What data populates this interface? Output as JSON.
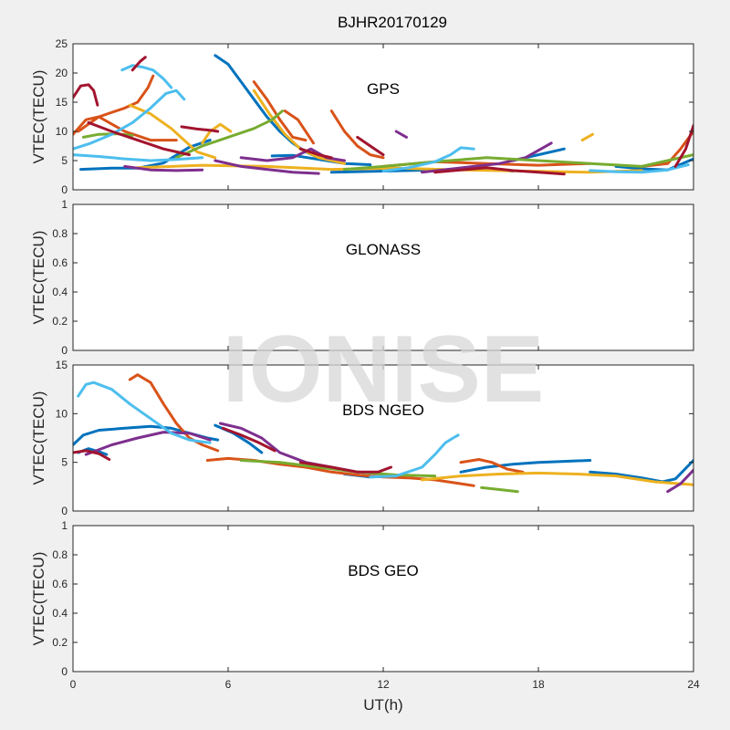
{
  "title": "BJHR20170129",
  "watermark": "IONISE",
  "xlabel": "UT(h)",
  "xlim": [
    0,
    24
  ],
  "xticks": [
    0,
    6,
    12,
    18,
    24
  ],
  "palette": [
    "#0072BD",
    "#D95319",
    "#EDB120",
    "#7E2F8E",
    "#77AC30",
    "#4DBEEE",
    "#A2142F"
  ],
  "chart_data": [
    {
      "type": "line",
      "panel": "GPS",
      "ylabel": "VTEC(TECU)",
      "ylim": [
        0,
        25
      ],
      "yticks": [
        0,
        5,
        10,
        15,
        20,
        25
      ],
      "series": [
        {
          "color": "#0072BD",
          "x": [
            0.3,
            1.5,
            2.5,
            3.5,
            4.5,
            5.3
          ],
          "y": [
            3.5,
            3.7,
            3.7,
            4.6,
            7.3,
            8.5
          ]
        },
        {
          "color": "#0072BD",
          "x": [
            5.5,
            6.0,
            6.5,
            7.0,
            7.5,
            8.0,
            8.5,
            9.0,
            9.5,
            10.0
          ],
          "y": [
            23.0,
            21.5,
            18.5,
            15.5,
            12.5,
            10.0,
            8.0,
            6.5,
            5.5,
            5.0
          ]
        },
        {
          "color": "#0072BD",
          "x": [
            7.7,
            8.5,
            9.5,
            10.5,
            11.5
          ],
          "y": [
            5.8,
            5.9,
            5.2,
            4.5,
            4.3
          ]
        },
        {
          "color": "#0072BD",
          "x": [
            10.0,
            12.0,
            14.0,
            16.0,
            17.0
          ],
          "y": [
            3.0,
            3.2,
            3.4,
            3.6,
            3.2
          ]
        },
        {
          "color": "#0072BD",
          "x": [
            17.0,
            18.0,
            19.0
          ],
          "y": [
            5.0,
            6.0,
            7.0
          ]
        },
        {
          "color": "#0072BD",
          "x": [
            21.0,
            22.0,
            23.0,
            24.0
          ],
          "y": [
            4.0,
            3.6,
            3.4,
            5.3
          ]
        },
        {
          "color": "#D95319",
          "x": [
            0.0,
            0.5,
            1.0,
            2.0,
            3.0,
            4.0
          ],
          "y": [
            9.5,
            12.0,
            12.5,
            10.0,
            8.5,
            8.5
          ]
        },
        {
          "color": "#D95319",
          "x": [
            0.2,
            1.0,
            2.0,
            2.5,
            2.9,
            3.1
          ],
          "y": [
            10.0,
            12.5,
            14.0,
            15.0,
            17.5,
            19.5
          ]
        },
        {
          "color": "#D95319",
          "x": [
            7.0,
            7.5,
            8.0,
            8.5,
            9.0
          ],
          "y": [
            18.5,
            15.5,
            12.0,
            9.0,
            8.5
          ]
        },
        {
          "color": "#D95319",
          "x": [
            8.2,
            8.7,
            9.3
          ],
          "y": [
            13.5,
            12.0,
            8.0
          ]
        },
        {
          "color": "#D95319",
          "x": [
            10.0,
            10.5,
            11.0,
            11.5,
            12.0
          ],
          "y": [
            13.5,
            10.0,
            7.5,
            6.0,
            5.5
          ]
        },
        {
          "color": "#D95319",
          "x": [
            12.0,
            14.0,
            16.0,
            18.0,
            20.0
          ],
          "y": [
            4.0,
            4.8,
            4.5,
            4.2,
            4.5
          ]
        },
        {
          "color": "#D95319",
          "x": [
            22.0,
            23.0,
            23.5,
            24.0
          ],
          "y": [
            4.0,
            4.5,
            7.0,
            10.0
          ]
        },
        {
          "color": "#EDB120",
          "x": [
            2.2,
            3.0,
            3.8,
            4.3,
            4.8,
            5.5
          ],
          "y": [
            14.5,
            13.0,
            10.5,
            8.5,
            6.5,
            5.5
          ]
        },
        {
          "color": "#EDB120",
          "x": [
            5.0,
            5.3,
            5.7,
            6.1
          ],
          "y": [
            8.0,
            10.0,
            11.2,
            10.0
          ]
        },
        {
          "color": "#EDB120",
          "x": [
            7.0,
            7.6,
            8.2,
            8.8,
            9.5,
            10.5
          ],
          "y": [
            17.0,
            13.0,
            9.5,
            7.0,
            5.5,
            4.5
          ]
        },
        {
          "color": "#EDB120",
          "x": [
            2.5,
            5.0,
            7.5,
            10.0,
            12.5,
            15.0,
            17.5,
            20.0,
            22.0
          ],
          "y": [
            3.8,
            4.2,
            4.0,
            3.5,
            3.7,
            3.4,
            3.2,
            3.0,
            3.3
          ]
        },
        {
          "color": "#EDB120",
          "x": [
            19.7,
            20.1
          ],
          "y": [
            8.5,
            9.5
          ]
        },
        {
          "color": "#7E2F8E",
          "x": [
            2.0,
            3.0,
            4.0,
            5.0
          ],
          "y": [
            4.0,
            3.4,
            3.3,
            3.4
          ]
        },
        {
          "color": "#7E2F8E",
          "x": [
            5.5,
            6.5,
            7.5,
            8.5,
            9.5
          ],
          "y": [
            5.0,
            4.0,
            3.5,
            3.0,
            2.8
          ]
        },
        {
          "color": "#7E2F8E",
          "x": [
            6.5,
            7.5,
            8.5,
            9.2,
            9.8,
            10.5
          ],
          "y": [
            5.5,
            5.0,
            5.5,
            7.0,
            5.5,
            5.0
          ]
        },
        {
          "color": "#7E2F8E",
          "x": [
            13.5,
            14.5,
            15.5,
            16.5,
            17.5,
            18.5
          ],
          "y": [
            3.0,
            3.5,
            4.0,
            4.5,
            5.5,
            8.0
          ]
        },
        {
          "color": "#7E2F8E",
          "x": [
            12.5,
            12.9
          ],
          "y": [
            10.0,
            9.0
          ]
        },
        {
          "color": "#77AC30",
          "x": [
            0.4,
            1.0,
            1.7,
            2.3
          ],
          "y": [
            9.0,
            9.5,
            9.6,
            9.3
          ]
        },
        {
          "color": "#77AC30",
          "x": [
            4.0,
            5.0,
            6.0,
            7.0,
            7.7,
            8.1
          ],
          "y": [
            5.5,
            7.5,
            9.0,
            10.5,
            12.0,
            13.5
          ]
        },
        {
          "color": "#77AC30",
          "x": [
            10.5,
            12.0,
            14.0,
            16.0,
            18.0,
            20.0,
            22.0,
            24.0
          ],
          "y": [
            3.5,
            4.0,
            4.8,
            5.5,
            5.0,
            4.5,
            4.0,
            6.0
          ]
        },
        {
          "color": "#4DBEEE",
          "x": [
            0.0,
            0.7,
            1.5,
            2.3,
            3.0,
            3.6,
            4.0,
            4.3
          ],
          "y": [
            7.0,
            8.0,
            9.5,
            11.5,
            14.0,
            16.5,
            17.0,
            15.5
          ]
        },
        {
          "color": "#4DBEEE",
          "x": [
            1.9,
            2.3,
            2.7,
            3.1,
            3.5,
            3.8
          ],
          "y": [
            20.5,
            21.3,
            21.0,
            20.5,
            19.0,
            17.5
          ]
        },
        {
          "color": "#4DBEEE",
          "x": [
            0.0,
            1.0,
            2.0,
            3.0,
            4.0,
            5.0
          ],
          "y": [
            6.0,
            5.7,
            5.3,
            5.0,
            5.2,
            5.5
          ]
        },
        {
          "color": "#4DBEEE",
          "x": [
            12.0,
            13.0,
            14.0,
            14.6,
            15.0,
            15.5
          ],
          "y": [
            3.2,
            3.8,
            4.8,
            6.0,
            7.2,
            7.0
          ]
        },
        {
          "color": "#4DBEEE",
          "x": [
            20.0,
            21.0,
            22.0,
            23.0,
            23.8
          ],
          "y": [
            3.3,
            3.1,
            3.0,
            3.4,
            4.3
          ]
        },
        {
          "color": "#A2142F",
          "x": [
            0.0,
            0.3,
            0.6,
            0.8,
            0.95
          ],
          "y": [
            15.8,
            17.8,
            18.0,
            17.0,
            14.5
          ]
        },
        {
          "color": "#A2142F",
          "x": [
            2.3,
            2.6,
            2.8
          ],
          "y": [
            20.5,
            22.0,
            22.7
          ]
        },
        {
          "color": "#A2142F",
          "x": [
            4.2,
            4.8,
            5.3,
            5.6
          ],
          "y": [
            10.8,
            10.4,
            10.2,
            10.0
          ]
        },
        {
          "color": "#A2142F",
          "x": [
            0.6,
            1.5,
            2.5,
            3.5,
            4.5
          ],
          "y": [
            11.5,
            10.0,
            8.5,
            7.0,
            6.0
          ]
        },
        {
          "color": "#A2142F",
          "x": [
            8.8,
            9.5,
            10.0
          ],
          "y": [
            7.0,
            6.0,
            5.5
          ]
        },
        {
          "color": "#A2142F",
          "x": [
            11.0,
            11.5,
            12.0
          ],
          "y": [
            9.0,
            7.5,
            6.0
          ]
        },
        {
          "color": "#A2142F",
          "x": [
            14.0,
            15.0,
            16.0,
            17.0,
            18.0,
            19.0
          ],
          "y": [
            3.0,
            3.4,
            3.8,
            3.3,
            3.0,
            2.7
          ]
        },
        {
          "color": "#A2142F",
          "x": [
            23.3,
            23.7,
            24.0
          ],
          "y": [
            4.0,
            7.0,
            11.0
          ]
        }
      ]
    },
    {
      "type": "line",
      "panel": "GLONASS",
      "ylabel": "VTEC(TECU)",
      "ylim": [
        0,
        1
      ],
      "yticks": [
        0,
        0.2,
        0.4,
        0.6,
        0.8,
        1
      ],
      "series": []
    },
    {
      "type": "line",
      "panel": "BDS NGEO",
      "ylabel": "VTEC(TECU)",
      "ylim": [
        0,
        15
      ],
      "yticks": [
        0,
        5,
        10,
        15
      ],
      "series": [
        {
          "color": "#0072BD",
          "x": [
            0.0,
            0.4,
            1.0,
            2.0,
            3.0,
            3.8,
            4.5,
            5.2,
            5.6
          ],
          "y": [
            6.8,
            7.8,
            8.3,
            8.5,
            8.7,
            8.5,
            8.0,
            7.5,
            7.3
          ]
        },
        {
          "color": "#0072BD",
          "x": [
            0.2,
            0.6,
            1.0,
            1.3
          ],
          "y": [
            6.0,
            6.4,
            6.1,
            5.8
          ]
        },
        {
          "color": "#0072BD",
          "x": [
            5.5,
            6.2,
            6.8,
            7.3
          ],
          "y": [
            8.8,
            8.0,
            7.0,
            6.0
          ]
        },
        {
          "color": "#0072BD",
          "x": [
            10.5,
            11.5,
            12.5
          ],
          "y": [
            3.8,
            3.5,
            3.6
          ]
        },
        {
          "color": "#0072BD",
          "x": [
            15.0,
            16.0,
            17.0,
            18.0,
            19.0,
            20.0
          ],
          "y": [
            4.0,
            4.5,
            4.8,
            5.0,
            5.1,
            5.2
          ]
        },
        {
          "color": "#0072BD",
          "x": [
            20.0,
            21.0,
            22.0,
            22.8,
            23.3,
            24.0
          ],
          "y": [
            4.0,
            3.8,
            3.4,
            3.0,
            3.3,
            5.2
          ]
        },
        {
          "color": "#D95319",
          "x": [
            2.2,
            2.5,
            3.0,
            3.5,
            4.0,
            4.5,
            5.0,
            5.6
          ],
          "y": [
            13.5,
            14.0,
            13.2,
            11.0,
            9.0,
            7.5,
            6.8,
            6.2
          ]
        },
        {
          "color": "#D95319",
          "x": [
            5.2,
            6.0,
            7.0,
            8.0,
            9.0,
            10.0,
            11.0,
            12.0,
            13.0,
            14.0,
            15.0,
            15.5
          ],
          "y": [
            5.2,
            5.4,
            5.2,
            4.8,
            4.5,
            4.0,
            3.7,
            3.5,
            3.4,
            3.2,
            2.8,
            2.6
          ]
        },
        {
          "color": "#D95319",
          "x": [
            15.0,
            15.7,
            16.2,
            16.8,
            17.4
          ],
          "y": [
            5.0,
            5.3,
            5.0,
            4.3,
            4.0
          ]
        },
        {
          "color": "#EDB120",
          "x": [
            13.5,
            15.0,
            16.5,
            18.0,
            19.5,
            21.0,
            22.5,
            24.0
          ],
          "y": [
            3.2,
            3.6,
            3.8,
            3.9,
            3.8,
            3.6,
            3.0,
            2.7
          ]
        },
        {
          "color": "#7E2F8E",
          "x": [
            0.5,
            1.5,
            2.5,
            3.5,
            4.5,
            5.3
          ],
          "y": [
            5.8,
            6.8,
            7.5,
            8.1,
            8.0,
            7.3
          ]
        },
        {
          "color": "#7E2F8E",
          "x": [
            5.7,
            6.5,
            7.3,
            8.0,
            9.0,
            10.0,
            11.0,
            12.0
          ],
          "y": [
            9.0,
            8.5,
            7.5,
            6.0,
            5.0,
            4.5,
            4.0,
            3.8
          ]
        },
        {
          "color": "#7E2F8E",
          "x": [
            23.0,
            23.5,
            24.0
          ],
          "y": [
            2.0,
            2.8,
            4.2
          ]
        },
        {
          "color": "#77AC30",
          "x": [
            6.5,
            8.0,
            9.5,
            11.0,
            12.5,
            14.0
          ],
          "y": [
            5.2,
            5.0,
            4.5,
            4.0,
            3.7,
            3.6
          ]
        },
        {
          "color": "#77AC30",
          "x": [
            15.8,
            16.5,
            17.2
          ],
          "y": [
            2.4,
            2.2,
            2.0
          ]
        },
        {
          "color": "#4DBEEE",
          "x": [
            0.2,
            0.5,
            0.8,
            1.5,
            2.2,
            3.0,
            3.8,
            4.5,
            5.3
          ],
          "y": [
            11.8,
            13.0,
            13.2,
            12.5,
            11.0,
            9.5,
            8.0,
            7.3,
            7.0
          ]
        },
        {
          "color": "#4DBEEE",
          "x": [
            11.5,
            12.5,
            13.5,
            14.0,
            14.4,
            14.7,
            14.9
          ],
          "y": [
            3.5,
            3.6,
            4.5,
            5.8,
            7.0,
            7.5,
            7.8
          ]
        },
        {
          "color": "#A2142F",
          "x": [
            0.0,
            0.5,
            1.0,
            1.4
          ],
          "y": [
            6.0,
            6.2,
            5.9,
            5.3
          ]
        },
        {
          "color": "#A2142F",
          "x": [
            5.8,
            6.5,
            7.2,
            7.8
          ],
          "y": [
            8.5,
            7.8,
            7.0,
            6.2
          ]
        },
        {
          "color": "#A2142F",
          "x": [
            8.8,
            10.0,
            11.0,
            11.8,
            12.3
          ],
          "y": [
            5.0,
            4.5,
            4.0,
            4.0,
            4.5
          ]
        }
      ]
    },
    {
      "type": "line",
      "panel": "BDS GEO",
      "ylabel": "VTEC(TECU)",
      "ylim": [
        0,
        1
      ],
      "yticks": [
        0,
        0.2,
        0.4,
        0.6,
        0.8,
        1
      ],
      "series": []
    }
  ]
}
